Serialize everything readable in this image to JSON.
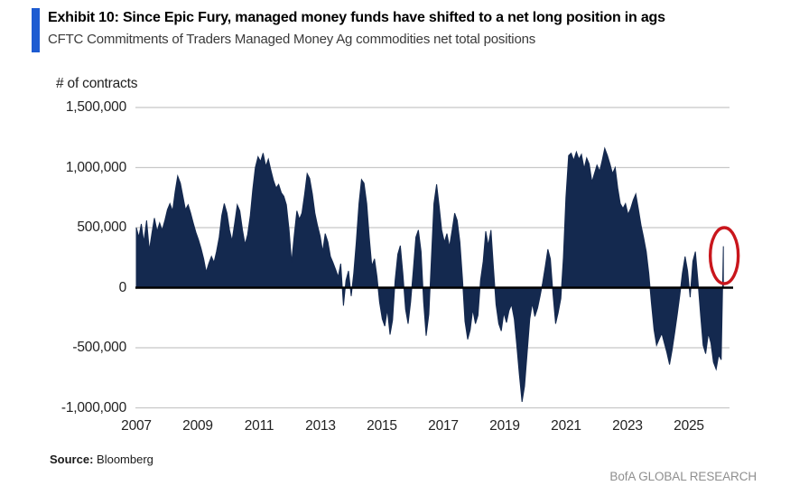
{
  "header": {
    "exhibit_title": "Exhibit 10: Since Epic Fury, managed money funds have shifted to a net long position in ags",
    "subtitle": "CFTC Commitments of Traders Managed Money Ag commodities net total positions",
    "accent_color": "#1d5bd1"
  },
  "footer": {
    "source_label": "Source:",
    "source_value": "Bloomberg",
    "brand": "BofA GLOBAL RESEARCH"
  },
  "chart_data": {
    "type": "area",
    "title": "CFTC Commitments of Traders Managed Money Ag commodities net total positions",
    "xlabel": "",
    "ylabel": "# of contracts",
    "ylim": [
      -1000000,
      1500000
    ],
    "xlim": [
      2007,
      2026.3
    ],
    "grid": true,
    "legend": "none",
    "y_ticks": [
      {
        "value": 1500000,
        "label": "1,500,000"
      },
      {
        "value": 1000000,
        "label": "1,000,000"
      },
      {
        "value": 500000,
        "label": "500,000"
      },
      {
        "value": 0,
        "label": "0"
      },
      {
        "value": -500000,
        "label": "-500,000"
      },
      {
        "value": -1000000,
        "label": "-1,000,000"
      }
    ],
    "x_ticks": [
      {
        "value": 2007,
        "label": "2007"
      },
      {
        "value": 2009,
        "label": "2009"
      },
      {
        "value": 2011,
        "label": "2011"
      },
      {
        "value": 2013,
        "label": "2013"
      },
      {
        "value": 2015,
        "label": "2015"
      },
      {
        "value": 2017,
        "label": "2017"
      },
      {
        "value": 2019,
        "label": "2019"
      },
      {
        "value": 2021,
        "label": "2021"
      },
      {
        "value": 2023,
        "label": "2023"
      },
      {
        "value": 2025,
        "label": "2025"
      }
    ],
    "colors": {
      "area": "#14294f",
      "zero_axis": "#000000",
      "gridline": "#c8c8c8",
      "annotation": "#c9161c"
    },
    "annotation": {
      "shape": "ellipse",
      "target": "last-data-point",
      "meaning": "latest reading circled in red"
    },
    "series": [
      {
        "name": "Managed Money Ag commodities net total positions (# of contracts)",
        "points": [
          [
            2007.0,
            500000
          ],
          [
            2007.08,
            420000
          ],
          [
            2007.16,
            530000
          ],
          [
            2007.24,
            380000
          ],
          [
            2007.33,
            560000
          ],
          [
            2007.42,
            310000
          ],
          [
            2007.5,
            450000
          ],
          [
            2007.58,
            580000
          ],
          [
            2007.67,
            470000
          ],
          [
            2007.75,
            540000
          ],
          [
            2007.83,
            480000
          ],
          [
            2007.92,
            560000
          ],
          [
            2008.0,
            650000
          ],
          [
            2008.08,
            700000
          ],
          [
            2008.17,
            640000
          ],
          [
            2008.25,
            800000
          ],
          [
            2008.33,
            930000
          ],
          [
            2008.42,
            870000
          ],
          [
            2008.5,
            760000
          ],
          [
            2008.58,
            650000
          ],
          [
            2008.67,
            690000
          ],
          [
            2008.75,
            620000
          ],
          [
            2008.83,
            540000
          ],
          [
            2008.92,
            460000
          ],
          [
            2009.0,
            400000
          ],
          [
            2009.08,
            330000
          ],
          [
            2009.17,
            240000
          ],
          [
            2009.25,
            130000
          ],
          [
            2009.33,
            200000
          ],
          [
            2009.42,
            260000
          ],
          [
            2009.5,
            210000
          ],
          [
            2009.58,
            300000
          ],
          [
            2009.67,
            420000
          ],
          [
            2009.75,
            600000
          ],
          [
            2009.83,
            700000
          ],
          [
            2009.92,
            620000
          ],
          [
            2010.0,
            480000
          ],
          [
            2010.08,
            390000
          ],
          [
            2010.17,
            540000
          ],
          [
            2010.25,
            690000
          ],
          [
            2010.33,
            640000
          ],
          [
            2010.42,
            480000
          ],
          [
            2010.5,
            360000
          ],
          [
            2010.58,
            440000
          ],
          [
            2010.67,
            600000
          ],
          [
            2010.75,
            820000
          ],
          [
            2010.83,
            1000000
          ],
          [
            2010.92,
            1090000
          ],
          [
            2011.0,
            1050000
          ],
          [
            2011.08,
            1120000
          ],
          [
            2011.17,
            1010000
          ],
          [
            2011.25,
            1070000
          ],
          [
            2011.33,
            980000
          ],
          [
            2011.42,
            890000
          ],
          [
            2011.5,
            830000
          ],
          [
            2011.58,
            860000
          ],
          [
            2011.67,
            790000
          ],
          [
            2011.75,
            760000
          ],
          [
            2011.83,
            690000
          ],
          [
            2011.92,
            480000
          ],
          [
            2012.0,
            210000
          ],
          [
            2012.08,
            430000
          ],
          [
            2012.17,
            640000
          ],
          [
            2012.25,
            570000
          ],
          [
            2012.33,
            620000
          ],
          [
            2012.42,
            780000
          ],
          [
            2012.5,
            950000
          ],
          [
            2012.58,
            910000
          ],
          [
            2012.67,
            780000
          ],
          [
            2012.75,
            620000
          ],
          [
            2012.83,
            520000
          ],
          [
            2012.92,
            430000
          ],
          [
            2013.0,
            300000
          ],
          [
            2013.08,
            450000
          ],
          [
            2013.17,
            380000
          ],
          [
            2013.25,
            260000
          ],
          [
            2013.33,
            210000
          ],
          [
            2013.42,
            150000
          ],
          [
            2013.5,
            90000
          ],
          [
            2013.58,
            200000
          ],
          [
            2013.67,
            -150000
          ],
          [
            2013.75,
            60000
          ],
          [
            2013.83,
            140000
          ],
          [
            2013.92,
            -70000
          ],
          [
            2014.0,
            120000
          ],
          [
            2014.08,
            380000
          ],
          [
            2014.17,
            700000
          ],
          [
            2014.25,
            900000
          ],
          [
            2014.33,
            870000
          ],
          [
            2014.42,
            700000
          ],
          [
            2014.5,
            420000
          ],
          [
            2014.58,
            180000
          ],
          [
            2014.67,
            240000
          ],
          [
            2014.75,
            90000
          ],
          [
            2014.83,
            -120000
          ],
          [
            2014.92,
            -260000
          ],
          [
            2015.0,
            -320000
          ],
          [
            2015.08,
            -180000
          ],
          [
            2015.17,
            -390000
          ],
          [
            2015.25,
            -270000
          ],
          [
            2015.33,
            60000
          ],
          [
            2015.42,
            280000
          ],
          [
            2015.5,
            350000
          ],
          [
            2015.58,
            120000
          ],
          [
            2015.67,
            -180000
          ],
          [
            2015.75,
            -300000
          ],
          [
            2015.83,
            -120000
          ],
          [
            2015.92,
            150000
          ],
          [
            2016.0,
            420000
          ],
          [
            2016.08,
            480000
          ],
          [
            2016.17,
            300000
          ],
          [
            2016.25,
            -120000
          ],
          [
            2016.33,
            -400000
          ],
          [
            2016.42,
            -220000
          ],
          [
            2016.5,
            240000
          ],
          [
            2016.58,
            700000
          ],
          [
            2016.67,
            860000
          ],
          [
            2016.75,
            680000
          ],
          [
            2016.83,
            480000
          ],
          [
            2016.92,
            380000
          ],
          [
            2017.0,
            450000
          ],
          [
            2017.08,
            340000
          ],
          [
            2017.17,
            480000
          ],
          [
            2017.25,
            620000
          ],
          [
            2017.33,
            560000
          ],
          [
            2017.42,
            380000
          ],
          [
            2017.5,
            80000
          ],
          [
            2017.58,
            -280000
          ],
          [
            2017.67,
            -430000
          ],
          [
            2017.75,
            -350000
          ],
          [
            2017.83,
            -180000
          ],
          [
            2017.92,
            -300000
          ],
          [
            2018.0,
            -230000
          ],
          [
            2018.08,
            60000
          ],
          [
            2018.17,
            220000
          ],
          [
            2018.25,
            470000
          ],
          [
            2018.33,
            350000
          ],
          [
            2018.42,
            480000
          ],
          [
            2018.5,
            160000
          ],
          [
            2018.58,
            -140000
          ],
          [
            2018.67,
            -300000
          ],
          [
            2018.75,
            -360000
          ],
          [
            2018.83,
            -210000
          ],
          [
            2018.92,
            -290000
          ],
          [
            2019.0,
            -190000
          ],
          [
            2019.08,
            -140000
          ],
          [
            2019.17,
            -260000
          ],
          [
            2019.25,
            -480000
          ],
          [
            2019.33,
            -720000
          ],
          [
            2019.42,
            -950000
          ],
          [
            2019.5,
            -820000
          ],
          [
            2019.58,
            -550000
          ],
          [
            2019.67,
            -260000
          ],
          [
            2019.75,
            -130000
          ],
          [
            2019.83,
            -240000
          ],
          [
            2019.92,
            -170000
          ],
          [
            2020.0,
            -70000
          ],
          [
            2020.08,
            40000
          ],
          [
            2020.17,
            180000
          ],
          [
            2020.25,
            320000
          ],
          [
            2020.33,
            240000
          ],
          [
            2020.42,
            -60000
          ],
          [
            2020.5,
            -300000
          ],
          [
            2020.58,
            -210000
          ],
          [
            2020.67,
            -90000
          ],
          [
            2020.75,
            250000
          ],
          [
            2020.83,
            750000
          ],
          [
            2020.92,
            1100000
          ],
          [
            2021.0,
            1120000
          ],
          [
            2021.08,
            1060000
          ],
          [
            2021.17,
            1130000
          ],
          [
            2021.25,
            1070000
          ],
          [
            2021.33,
            1110000
          ],
          [
            2021.42,
            990000
          ],
          [
            2021.5,
            1080000
          ],
          [
            2021.58,
            1030000
          ],
          [
            2021.67,
            880000
          ],
          [
            2021.75,
            950000
          ],
          [
            2021.83,
            1020000
          ],
          [
            2021.92,
            970000
          ],
          [
            2022.0,
            1060000
          ],
          [
            2022.08,
            1160000
          ],
          [
            2022.17,
            1100000
          ],
          [
            2022.25,
            1030000
          ],
          [
            2022.33,
            950000
          ],
          [
            2022.42,
            1000000
          ],
          [
            2022.5,
            830000
          ],
          [
            2022.58,
            700000
          ],
          [
            2022.67,
            660000
          ],
          [
            2022.75,
            700000
          ],
          [
            2022.83,
            610000
          ],
          [
            2022.92,
            660000
          ],
          [
            2023.0,
            730000
          ],
          [
            2023.08,
            780000
          ],
          [
            2023.17,
            650000
          ],
          [
            2023.25,
            520000
          ],
          [
            2023.33,
            420000
          ],
          [
            2023.42,
            300000
          ],
          [
            2023.5,
            120000
          ],
          [
            2023.58,
            -120000
          ],
          [
            2023.67,
            -350000
          ],
          [
            2023.75,
            -480000
          ],
          [
            2023.83,
            -430000
          ],
          [
            2023.92,
            -380000
          ],
          [
            2024.0,
            -460000
          ],
          [
            2024.08,
            -540000
          ],
          [
            2024.17,
            -640000
          ],
          [
            2024.25,
            -520000
          ],
          [
            2024.33,
            -380000
          ],
          [
            2024.42,
            -220000
          ],
          [
            2024.5,
            -60000
          ],
          [
            2024.58,
            120000
          ],
          [
            2024.67,
            260000
          ],
          [
            2024.75,
            140000
          ],
          [
            2024.83,
            -80000
          ],
          [
            2024.92,
            220000
          ],
          [
            2025.0,
            300000
          ],
          [
            2025.08,
            60000
          ],
          [
            2025.17,
            -230000
          ],
          [
            2025.25,
            -480000
          ],
          [
            2025.33,
            -550000
          ],
          [
            2025.42,
            -380000
          ],
          [
            2025.5,
            -460000
          ],
          [
            2025.58,
            -620000
          ],
          [
            2025.67,
            -680000
          ],
          [
            2025.75,
            -560000
          ],
          [
            2025.83,
            -600000
          ],
          [
            2025.9,
            345000
          ]
        ]
      }
    ]
  }
}
